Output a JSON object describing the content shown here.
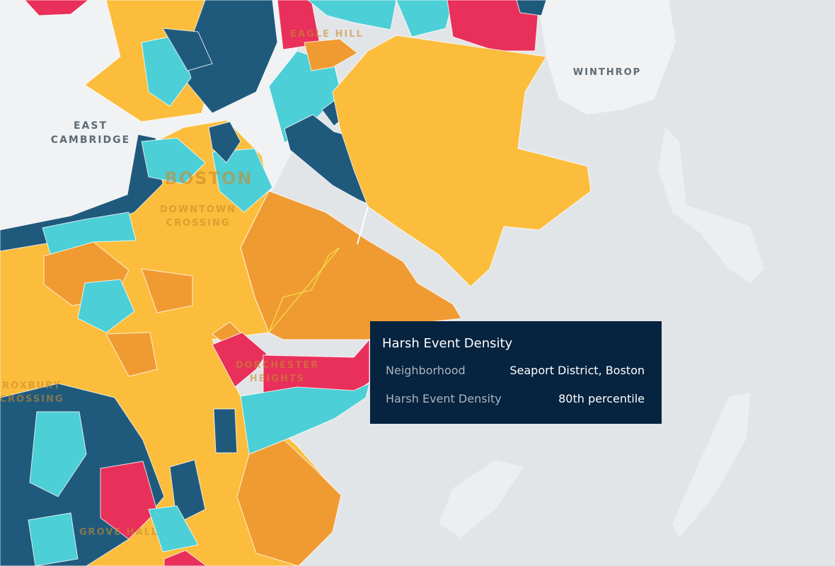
{
  "map_labels": [
    {
      "lines": [
        "EAST",
        "CAMBRIDGE"
      ]
    },
    {
      "lines": [
        "WINTHROP"
      ]
    },
    {
      "lines": [
        "BOSTON"
      ]
    },
    {
      "lines": [
        "DOWNTOWN",
        "CROSSING"
      ]
    },
    {
      "lines": [
        "EAGLE HILL"
      ]
    },
    {
      "lines": [
        "DORCHESTER",
        "HEIGHTS"
      ]
    },
    {
      "lines": [
        "ROXBURY",
        "CROSSING"
      ]
    },
    {
      "lines": [
        "GROVE HALL"
      ]
    }
  ],
  "tooltip": {
    "title": "Harsh Event Density",
    "rows": [
      [
        "Neighborhood",
        "Seaport District, Boston"
      ],
      [
        "Harsh Event Density",
        "80th percentile"
      ]
    ]
  }
}
